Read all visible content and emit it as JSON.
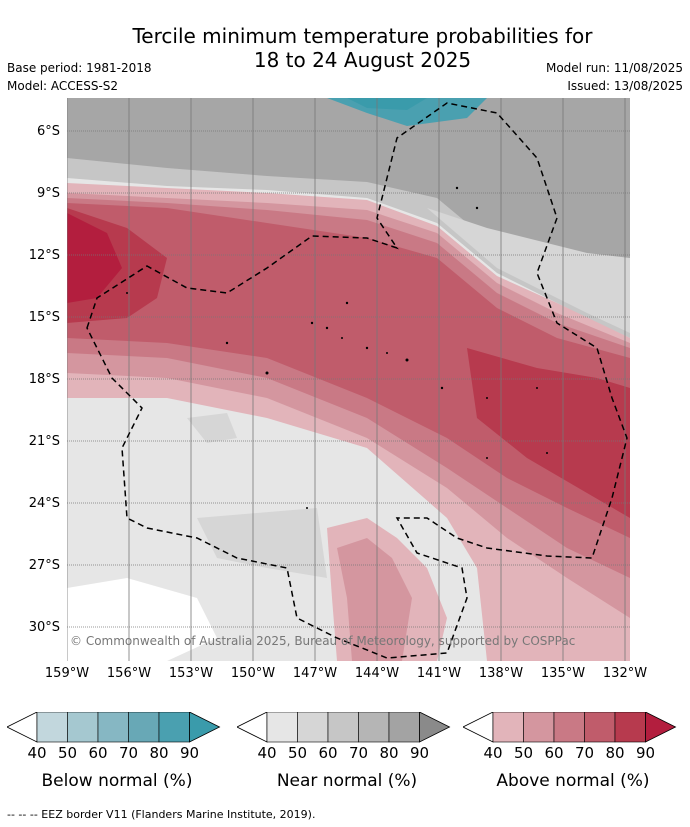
{
  "title_line1": "Tercile minimum temperature probabilities for",
  "title_line2": "18 to 24 August 2025",
  "base_period": "Base period: 1981-2018",
  "model": "Model: ACCESS-S2",
  "model_run": "Model run: 11/08/2025",
  "issued": "Issued: 13/08/2025",
  "copyright": "© Commonwealth of Australia 2025, Bureau of Meteorology, supported by COSPPac",
  "footer": "--  --  -- EEZ border V11 (Flanders Marine Institute, 2019).",
  "y_axis_labels": [
    "6°S",
    "9°S",
    "12°S",
    "15°S",
    "18°S",
    "21°S",
    "24°S",
    "27°S",
    "30°S"
  ],
  "x_axis_labels": [
    "159°W",
    "156°W",
    "153°W",
    "150°W",
    "147°W",
    "144°W",
    "141°W",
    "138°W",
    "135°W",
    "132°W"
  ],
  "legends": [
    {
      "label": "Below normal (%)",
      "ticks": [
        "40",
        "50",
        "60",
        "70",
        "80",
        "90"
      ],
      "colors": [
        "#c2d7dd",
        "#a5c8d0",
        "#86b7c3",
        "#68a8b6",
        "#4aa0b0",
        "#3a9bab"
      ]
    },
    {
      "label": "Near normal (%)",
      "ticks": [
        "40",
        "50",
        "60",
        "70",
        "80",
        "90"
      ],
      "colors": [
        "#e6e6e6",
        "#d6d6d6",
        "#c6c6c6",
        "#b5b5b5",
        "#a3a3a3",
        "#8a8a8a"
      ]
    },
    {
      "label": "Above normal (%)",
      "ticks": [
        "40",
        "50",
        "60",
        "70",
        "80",
        "90"
      ],
      "colors": [
        "#e2b4ba",
        "#d4969f",
        "#c97985",
        "#c05c6b",
        "#b73a4e",
        "#b31e3e"
      ]
    }
  ]
}
